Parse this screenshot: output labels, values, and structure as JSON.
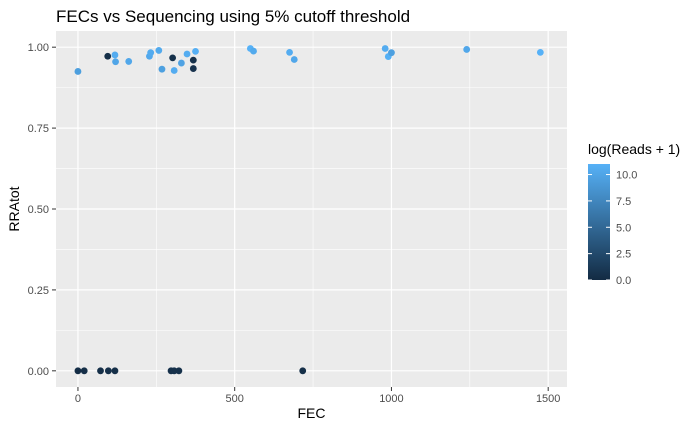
{
  "chart_data": {
    "type": "scatter",
    "title": "FECs vs Sequencing using 5% cutoff threshold",
    "xlabel": "FEC",
    "ylabel": "RRAtot",
    "xlim": [
      -70,
      1560
    ],
    "ylim": [
      -0.05,
      1.05
    ],
    "x_ticks": [
      0,
      500,
      1000,
      1500
    ],
    "x_tick_labels": [
      "0",
      "500",
      "1000",
      "1500"
    ],
    "y_ticks": [
      0,
      0.25,
      0.5,
      0.75,
      1.0
    ],
    "y_tick_labels": [
      "0.00",
      "0.25",
      "0.50",
      "0.75",
      "1.00"
    ],
    "grid": true,
    "panel_background": "#ebebeb",
    "legend": {
      "title": "log(Reads + 1)",
      "placement": "right",
      "type": "colorbar",
      "range": [
        0,
        11
      ],
      "ticks": [
        0,
        2.5,
        5,
        7.5,
        10
      ],
      "tick_labels": [
        "0.0",
        "2.5",
        "5.0",
        "7.5",
        "10.0"
      ],
      "low_color": "#132b43",
      "high_color": "#56b1f7"
    },
    "points": [
      {
        "x": 0,
        "y": 0.925,
        "c": 9.5
      },
      {
        "x": 95,
        "y": 0.972,
        "c": 0.3
      },
      {
        "x": 118,
        "y": 0.976,
        "c": 10.5
      },
      {
        "x": 120,
        "y": 0.955,
        "c": 10.0
      },
      {
        "x": 162,
        "y": 0.956,
        "c": 10.2
      },
      {
        "x": 228,
        "y": 0.972,
        "c": 10.3
      },
      {
        "x": 232,
        "y": 0.983,
        "c": 10.5
      },
      {
        "x": 258,
        "y": 0.99,
        "c": 10.4
      },
      {
        "x": 268,
        "y": 0.932,
        "c": 9.6
      },
      {
        "x": 302,
        "y": 0.967,
        "c": 0.4
      },
      {
        "x": 307,
        "y": 0.928,
        "c": 10.6
      },
      {
        "x": 330,
        "y": 0.951,
        "c": 9.8
      },
      {
        "x": 348,
        "y": 0.979,
        "c": 10.6
      },
      {
        "x": 368,
        "y": 0.96,
        "c": 0.5
      },
      {
        "x": 368,
        "y": 0.934,
        "c": 0.6
      },
      {
        "x": 375,
        "y": 0.987,
        "c": 10.8
      },
      {
        "x": 550,
        "y": 0.996,
        "c": 11.0
      },
      {
        "x": 560,
        "y": 0.988,
        "c": 10.4
      },
      {
        "x": 675,
        "y": 0.984,
        "c": 10.6
      },
      {
        "x": 690,
        "y": 0.962,
        "c": 10.2
      },
      {
        "x": 980,
        "y": 0.996,
        "c": 10.6
      },
      {
        "x": 990,
        "y": 0.971,
        "c": 10.9
      },
      {
        "x": 1000,
        "y": 0.983,
        "c": 9.6
      },
      {
        "x": 1240,
        "y": 0.993,
        "c": 10.2
      },
      {
        "x": 1475,
        "y": 0.984,
        "c": 11.0
      },
      {
        "x": 0,
        "y": 0.0,
        "c": 0.2
      },
      {
        "x": 20,
        "y": 0.0,
        "c": 0.3
      },
      {
        "x": 72,
        "y": 0.0,
        "c": 0.3
      },
      {
        "x": 97,
        "y": 0.0,
        "c": 0.4
      },
      {
        "x": 118,
        "y": 0.0,
        "c": 0.3
      },
      {
        "x": 297,
        "y": 0.0,
        "c": 0.4
      },
      {
        "x": 307,
        "y": 0.0,
        "c": 0.5
      },
      {
        "x": 322,
        "y": 0.0,
        "c": 0.4
      },
      {
        "x": 717,
        "y": 0.0,
        "c": 0.3
      }
    ]
  }
}
